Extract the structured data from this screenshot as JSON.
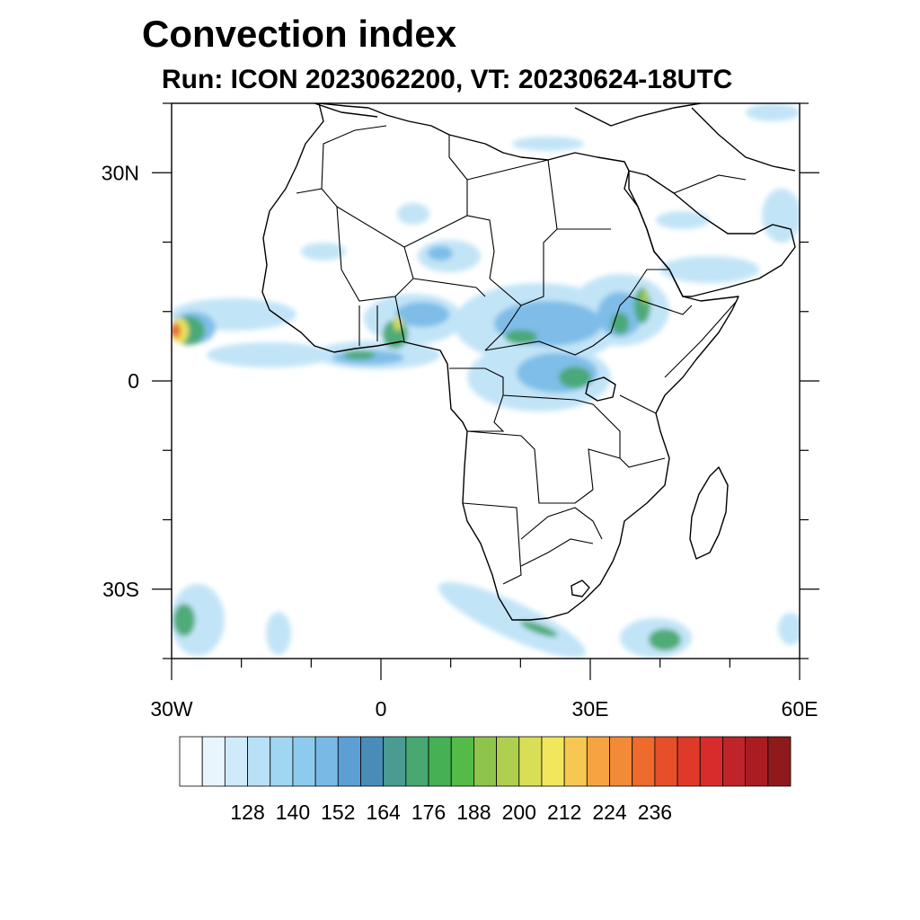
{
  "title": "Convection index",
  "subtitle": "Run: ICON 2023062200,  VT: 20230624-18UTC",
  "map": {
    "region": "Africa",
    "projection": "cylindrical equidistant",
    "lon_range": [
      -30,
      60
    ],
    "lat_range": [
      -40,
      40
    ],
    "lon_ticks": [
      {
        "value": -30,
        "label": "30W"
      },
      {
        "value": 0,
        "label": "0"
      },
      {
        "value": 30,
        "label": "30E"
      },
      {
        "value": 60,
        "label": "60E"
      }
    ],
    "lat_ticks": [
      {
        "value": 30,
        "label": "30N"
      },
      {
        "value": 0,
        "label": "0"
      },
      {
        "value": -30,
        "label": "30S"
      }
    ],
    "features": [
      "coastlines",
      "country borders",
      "filled contours of convection index"
    ]
  },
  "colorbar": {
    "labels": [
      "128",
      "140",
      "152",
      "164",
      "176",
      "188",
      "200",
      "212",
      "224",
      "236"
    ],
    "colors": [
      "#ffffff",
      "#e9f5fc",
      "#cfeaf9",
      "#b8e0f6",
      "#a0d6f2",
      "#8ccbee",
      "#78b9e6",
      "#5b9fd5",
      "#4a8cb8",
      "#4a9c92",
      "#48a872",
      "#45b054",
      "#54bb48",
      "#8fc44c",
      "#b0cf4e",
      "#d8df56",
      "#f2e75c",
      "#f7c851",
      "#f6a441",
      "#f28a37",
      "#ee6a2d",
      "#e64f29",
      "#df3a29",
      "#d62d2c",
      "#c0232a",
      "#a81c22",
      "#8f1a1c"
    ]
  }
}
